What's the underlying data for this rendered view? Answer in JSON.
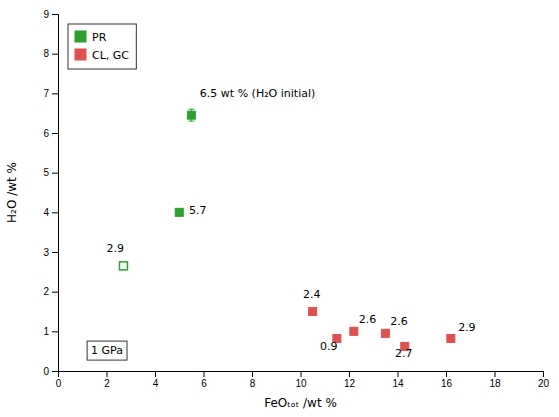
{
  "chart_data": {
    "type": "scatter",
    "xlabel": "FeOₜₒₜ /wt %",
    "ylabel": "H₂O /wt %",
    "xlim": [
      0,
      20
    ],
    "ylim": [
      0,
      9
    ],
    "xticks": [
      0,
      2,
      4,
      6,
      8,
      10,
      12,
      14,
      16,
      18,
      20
    ],
    "yticks": [
      0,
      1,
      2,
      3,
      4,
      5,
      6,
      7,
      8,
      9
    ],
    "legend": "upper left",
    "grid": false,
    "series": [
      {
        "name": "PR",
        "color": "#2ca02c",
        "marker": "square",
        "x": [
          5.5,
          5.0
        ],
        "values": [
          6.45,
          4.0
        ],
        "errors": [
          0.15,
          0
        ]
      },
      {
        "color": "#2ca02c",
        "marker": "square-open",
        "x": [
          2.7
        ],
        "values": [
          2.65
        ],
        "errors": [
          0
        ]
      },
      {
        "name": "CL, GC",
        "color": "#e05050",
        "marker": "square",
        "x": [
          10.5,
          11.5,
          12.2,
          13.5,
          14.3,
          16.2
        ],
        "values": [
          1.5,
          0.82,
          1.0,
          0.95,
          0.62,
          0.82
        ],
        "errors": [
          0.1,
          0.05,
          0.08,
          0.07,
          0.06,
          0.1
        ]
      }
    ],
    "annotations": [
      {
        "text": "6.5 wt % (H₂O initial)",
        "x": 5.85,
        "y": 6.9
      },
      {
        "text": "5.7",
        "x": 5.4,
        "y": 3.95
      },
      {
        "text": "2.9",
        "x": 2.0,
        "y": 3.0
      },
      {
        "text": "2.4",
        "x": 10.1,
        "y": 1.85
      },
      {
        "text": "0.9",
        "x": 10.8,
        "y": 0.52
      },
      {
        "text": "2.6",
        "x": 12.4,
        "y": 1.2
      },
      {
        "text": "2.6",
        "x": 13.7,
        "y": 1.15
      },
      {
        "text": "2.7",
        "x": 13.9,
        "y": 0.35
      },
      {
        "text": "2.9",
        "x": 16.5,
        "y": 1.0
      }
    ],
    "boxed_annotation": {
      "text": "1 GPa",
      "x": 1.2,
      "y": 0.3
    }
  }
}
